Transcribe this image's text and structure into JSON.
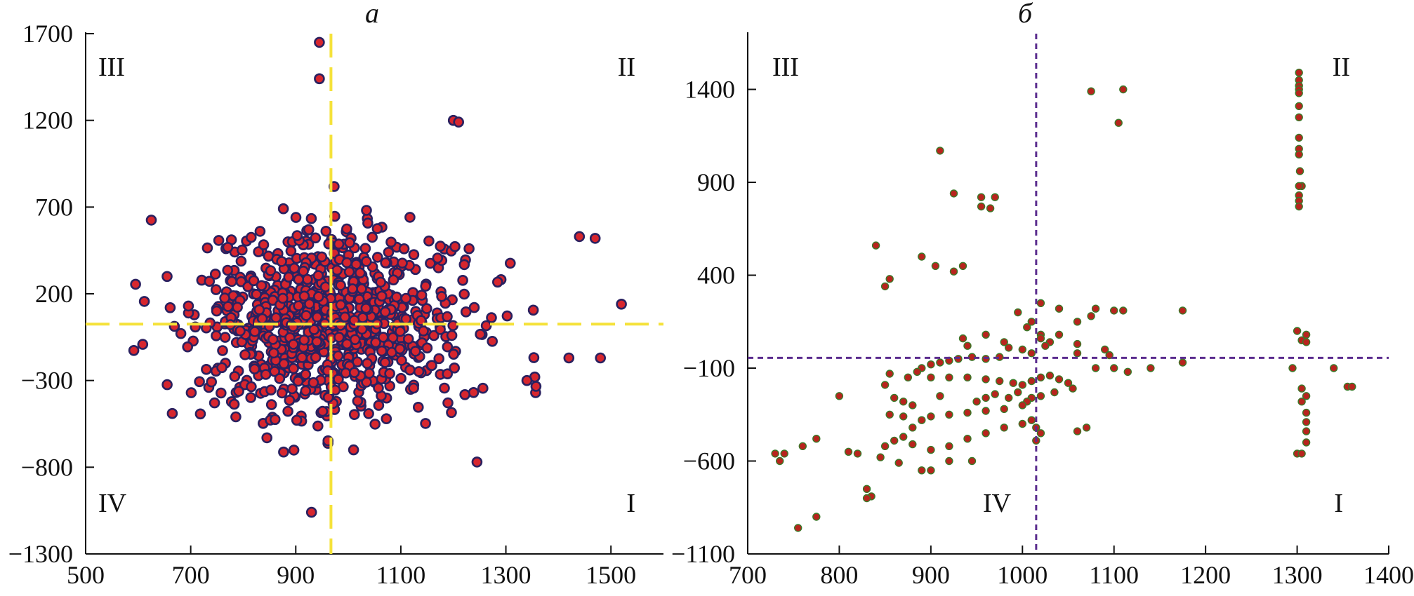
{
  "chart_data": [
    {
      "type": "scatter",
      "title": "а",
      "xlabel": "",
      "ylabel": "",
      "xlim": [
        500,
        1600
      ],
      "ylim": [
        -1300,
        1700
      ],
      "xticks": [
        500,
        700,
        900,
        1100,
        1300,
        1500
      ],
      "yticks": [
        1700,
        1200,
        700,
        200,
        -300,
        -800,
        -1300
      ],
      "grid": false,
      "ref_lines": {
        "x": 967,
        "y": 25
      },
      "colors": {
        "marker_fill": "#d7262e",
        "marker_edge": "#2a2160",
        "ref_line": "#f5e23a"
      },
      "quadrant_labels": [
        {
          "text": "III",
          "position": "top-left"
        },
        {
          "text": "II",
          "position": "top-right"
        },
        {
          "text": "IV",
          "position": "bottom-left"
        },
        {
          "text": "I",
          "position": "bottom-right"
        }
      ],
      "outliers": [
        [
          945,
          1650
        ],
        [
          945,
          1440
        ],
        [
          1200,
          1200
        ],
        [
          1210,
          1190
        ],
        [
          930,
          -1060
        ],
        [
          1245,
          -770
        ],
        [
          665,
          -490
        ],
        [
          1010,
          -700
        ],
        [
          1520,
          140
        ],
        [
          1470,
          520
        ],
        [
          1440,
          530
        ],
        [
          595,
          255
        ],
        [
          655,
          300
        ],
        [
          625,
          625
        ],
        [
          1480,
          -170
        ],
        [
          1420,
          -170
        ],
        [
          1355,
          -280
        ],
        [
          1340,
          -300
        ]
      ],
      "generated_cloud": {
        "count": 900,
        "center": [
          967,
          25
        ],
        "spread": [
          125,
          260
        ],
        "seed": 7
      }
    },
    {
      "type": "scatter",
      "title": "б",
      "xlabel": "",
      "ylabel": "",
      "xlim": [
        700,
        1400
      ],
      "ylim": [
        -1100,
        1700
      ],
      "xticks": [
        700,
        800,
        900,
        1000,
        1100,
        1200,
        1300,
        1400
      ],
      "yticks": [
        1400,
        900,
        400,
        -100,
        -600,
        -1100
      ],
      "grid": false,
      "ref_lines": {
        "x": 1015,
        "y": -45
      },
      "colors": {
        "marker_fill": "#b8241d",
        "marker_edge": "#3a7a2a",
        "ref_line": "#5b2d8e"
      },
      "quadrant_labels": [
        {
          "text": "III",
          "position": "top-left"
        },
        {
          "text": "II",
          "position": "top-right"
        },
        {
          "text": "IV",
          "position": "bottom-left"
        },
        {
          "text": "I",
          "position": "bottom-right"
        }
      ],
      "points": [
        [
          1302,
          1490
        ],
        [
          1302,
          1450
        ],
        [
          1302,
          1420
        ],
        [
          1302,
          1400
        ],
        [
          1302,
          1380
        ],
        [
          1302,
          1310
        ],
        [
          1302,
          1250
        ],
        [
          1302,
          1140
        ],
        [
          1302,
          1080
        ],
        [
          1302,
          1050
        ],
        [
          1303,
          960
        ],
        [
          1305,
          880
        ],
        [
          1302,
          880
        ],
        [
          1302,
          830
        ],
        [
          1302,
          800
        ],
        [
          1302,
          770
        ],
        [
          1075,
          1390
        ],
        [
          1110,
          1400
        ],
        [
          1105,
          1220
        ],
        [
          910,
          1070
        ],
        [
          925,
          840
        ],
        [
          955,
          820
        ],
        [
          970,
          820
        ],
        [
          955,
          770
        ],
        [
          965,
          760
        ],
        [
          840,
          560
        ],
        [
          890,
          500
        ],
        [
          905,
          450
        ],
        [
          935,
          450
        ],
        [
          925,
          420
        ],
        [
          855,
          380
        ],
        [
          850,
          340
        ],
        [
          995,
          200
        ],
        [
          1020,
          250
        ],
        [
          1040,
          220
        ],
        [
          1060,
          150
        ],
        [
          1075,
          180
        ],
        [
          1080,
          220
        ],
        [
          1100,
          210
        ],
        [
          1110,
          210
        ],
        [
          1175,
          210
        ],
        [
          1010,
          150
        ],
        [
          1005,
          120
        ],
        [
          1020,
          80
        ],
        [
          1040,
          80
        ],
        [
          1020,
          60
        ],
        [
          1030,
          40
        ],
        [
          1025,
          20
        ],
        [
          1060,
          30
        ],
        [
          1090,
          0
        ],
        [
          1095,
          -30
        ],
        [
          1060,
          -20
        ],
        [
          1080,
          -100
        ],
        [
          1100,
          -100
        ],
        [
          1115,
          -120
        ],
        [
          1140,
          -100
        ],
        [
          1175,
          -70
        ],
        [
          1300,
          100
        ],
        [
          1310,
          80
        ],
        [
          1305,
          50
        ],
        [
          1310,
          40
        ],
        [
          1295,
          -100
        ],
        [
          1340,
          -100
        ],
        [
          1355,
          -200
        ],
        [
          1360,
          -200
        ],
        [
          1305,
          -210
        ],
        [
          1310,
          -250
        ],
        [
          1305,
          -280
        ],
        [
          1310,
          -340
        ],
        [
          1310,
          -390
        ],
        [
          1310,
          -440
        ],
        [
          1310,
          -500
        ],
        [
          1300,
          -560
        ],
        [
          1305,
          -560
        ],
        [
          960,
          80
        ],
        [
          935,
          60
        ],
        [
          940,
          20
        ],
        [
          980,
          40
        ],
        [
          985,
          10
        ],
        [
          1000,
          0
        ],
        [
          1010,
          -20
        ],
        [
          975,
          -40
        ],
        [
          960,
          -50
        ],
        [
          945,
          -40
        ],
        [
          930,
          -50
        ],
        [
          920,
          -60
        ],
        [
          910,
          -70
        ],
        [
          900,
          -80
        ],
        [
          890,
          -100
        ],
        [
          885,
          -120
        ],
        [
          875,
          -150
        ],
        [
          855,
          -130
        ],
        [
          900,
          -150
        ],
        [
          920,
          -150
        ],
        [
          940,
          -150
        ],
        [
          960,
          -160
        ],
        [
          975,
          -170
        ],
        [
          990,
          -180
        ],
        [
          1000,
          -190
        ],
        [
          1010,
          -170
        ],
        [
          1020,
          -150
        ],
        [
          1030,
          -140
        ],
        [
          1040,
          -160
        ],
        [
          1050,
          -180
        ],
        [
          1055,
          -210
        ],
        [
          1035,
          -230
        ],
        [
          1020,
          -250
        ],
        [
          1010,
          -260
        ],
        [
          1005,
          -280
        ],
        [
          1000,
          -300
        ],
        [
          980,
          -320
        ],
        [
          960,
          -330
        ],
        [
          940,
          -340
        ],
        [
          920,
          -350
        ],
        [
          900,
          -360
        ],
        [
          890,
          -380
        ],
        [
          880,
          -420
        ],
        [
          870,
          -470
        ],
        [
          860,
          -490
        ],
        [
          850,
          -520
        ],
        [
          880,
          -510
        ],
        [
          900,
          -540
        ],
        [
          920,
          -520
        ],
        [
          940,
          -480
        ],
        [
          960,
          -450
        ],
        [
          980,
          -420
        ],
        [
          1000,
          -400
        ],
        [
          1010,
          -380
        ],
        [
          1015,
          -420
        ],
        [
          1020,
          -450
        ],
        [
          1015,
          -490
        ],
        [
          1060,
          -440
        ],
        [
          1070,
          -420
        ],
        [
          880,
          -300
        ],
        [
          870,
          -280
        ],
        [
          860,
          -260
        ],
        [
          950,
          -280
        ],
        [
          960,
          -260
        ],
        [
          970,
          -240
        ],
        [
          985,
          -260
        ],
        [
          995,
          -230
        ],
        [
          920,
          -600
        ],
        [
          900,
          -650
        ],
        [
          890,
          -650
        ],
        [
          865,
          -610
        ],
        [
          845,
          -580
        ],
        [
          820,
          -560
        ],
        [
          810,
          -550
        ],
        [
          775,
          -480
        ],
        [
          760,
          -520
        ],
        [
          740,
          -560
        ],
        [
          730,
          -560
        ],
        [
          735,
          -600
        ],
        [
          830,
          -750
        ],
        [
          835,
          -790
        ],
        [
          830,
          -800
        ],
        [
          775,
          -900
        ],
        [
          755,
          -960
        ],
        [
          800,
          -250
        ],
        [
          850,
          -190
        ],
        [
          855,
          -350
        ],
        [
          870,
          -360
        ],
        [
          910,
          -250
        ],
        [
          945,
          -600
        ]
      ]
    }
  ]
}
